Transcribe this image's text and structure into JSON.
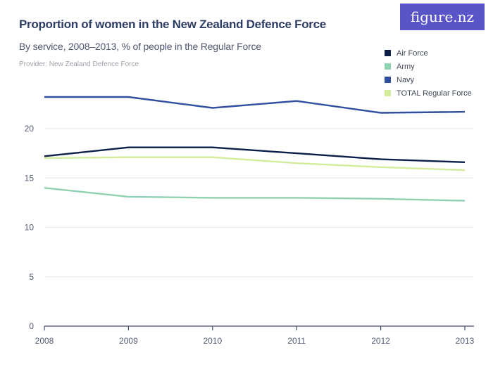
{
  "header": {
    "title": "Proportion of women in the New Zealand Defence Force",
    "subtitle": "By service, 2008–2013, % of people in the Regular Force",
    "provider": "Provider: New Zealand Defence Force"
  },
  "logo": {
    "text": "figure.nz",
    "background_color": "#5955c8",
    "text_color": "#ffffff"
  },
  "colors": {
    "title_text": "#2e3d63",
    "subtitle_text": "#4f5770",
    "provider_text": "#a3a4ad",
    "axis_line": "#434e66",
    "gridline": "#e9e9ee",
    "tick_text": "#555d75"
  },
  "chart_data": {
    "type": "line",
    "title": "Proportion of women in the New Zealand Defence Force",
    "subtitle": "By service, 2008–2013, % of people in the Regular Force",
    "xlabel": "",
    "ylabel": "% of people in the Regular Force",
    "x": [
      2008,
      2009,
      2010,
      2011,
      2012,
      2013
    ],
    "series": [
      {
        "name": "Air Force",
        "color": "#0e1e4b",
        "values": [
          17.2,
          18.1,
          18.1,
          17.5,
          16.9,
          16.6
        ]
      },
      {
        "name": "Army",
        "color": "#8fd2b1",
        "values": [
          14.0,
          13.1,
          13.0,
          13.0,
          12.9,
          12.7
        ]
      },
      {
        "name": "Navy",
        "color": "#30509f",
        "values": [
          23.2,
          23.2,
          22.1,
          22.8,
          21.6,
          21.7
        ]
      },
      {
        "name": "TOTAL Regular Force",
        "color": "#d2ec9b",
        "values": [
          17.0,
          17.1,
          17.1,
          16.5,
          16.1,
          15.8
        ]
      }
    ],
    "yticks": [
      0,
      5,
      10,
      15,
      20
    ],
    "ylim": [
      0,
      25
    ],
    "grid": true,
    "legend_position": "top-right"
  }
}
